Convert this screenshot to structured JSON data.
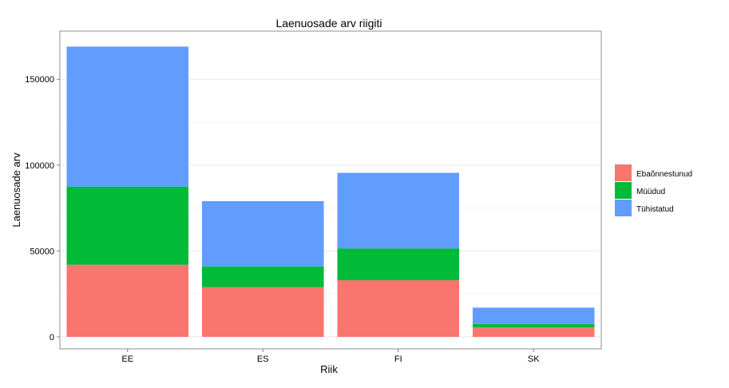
{
  "chart_data": {
    "type": "bar",
    "stacked": true,
    "title": "Laenuosade arv riigiti",
    "xlabel": "Riik",
    "ylabel": "Laenuosade arv",
    "categories": [
      "EE",
      "ES",
      "FI",
      "SK"
    ],
    "series": [
      {
        "name": "Ebaõnnestunud",
        "color": "#F8766D",
        "values": [
          42000,
          29000,
          33000,
          5500
        ]
      },
      {
        "name": "Müüdud",
        "color": "#00BA38",
        "values": [
          45500,
          12000,
          18500,
          2000
        ]
      },
      {
        "name": "Tühistatud",
        "color": "#619CFF",
        "values": [
          81500,
          38000,
          44000,
          9500
        ]
      }
    ],
    "ylim": [
      -7000,
      178000
    ],
    "yticks": [
      0,
      50000,
      100000,
      150000
    ],
    "ytick_labels": [
      "0",
      "50000",
      "100000",
      "150000"
    ],
    "grid": true,
    "legend_position": "right"
  }
}
